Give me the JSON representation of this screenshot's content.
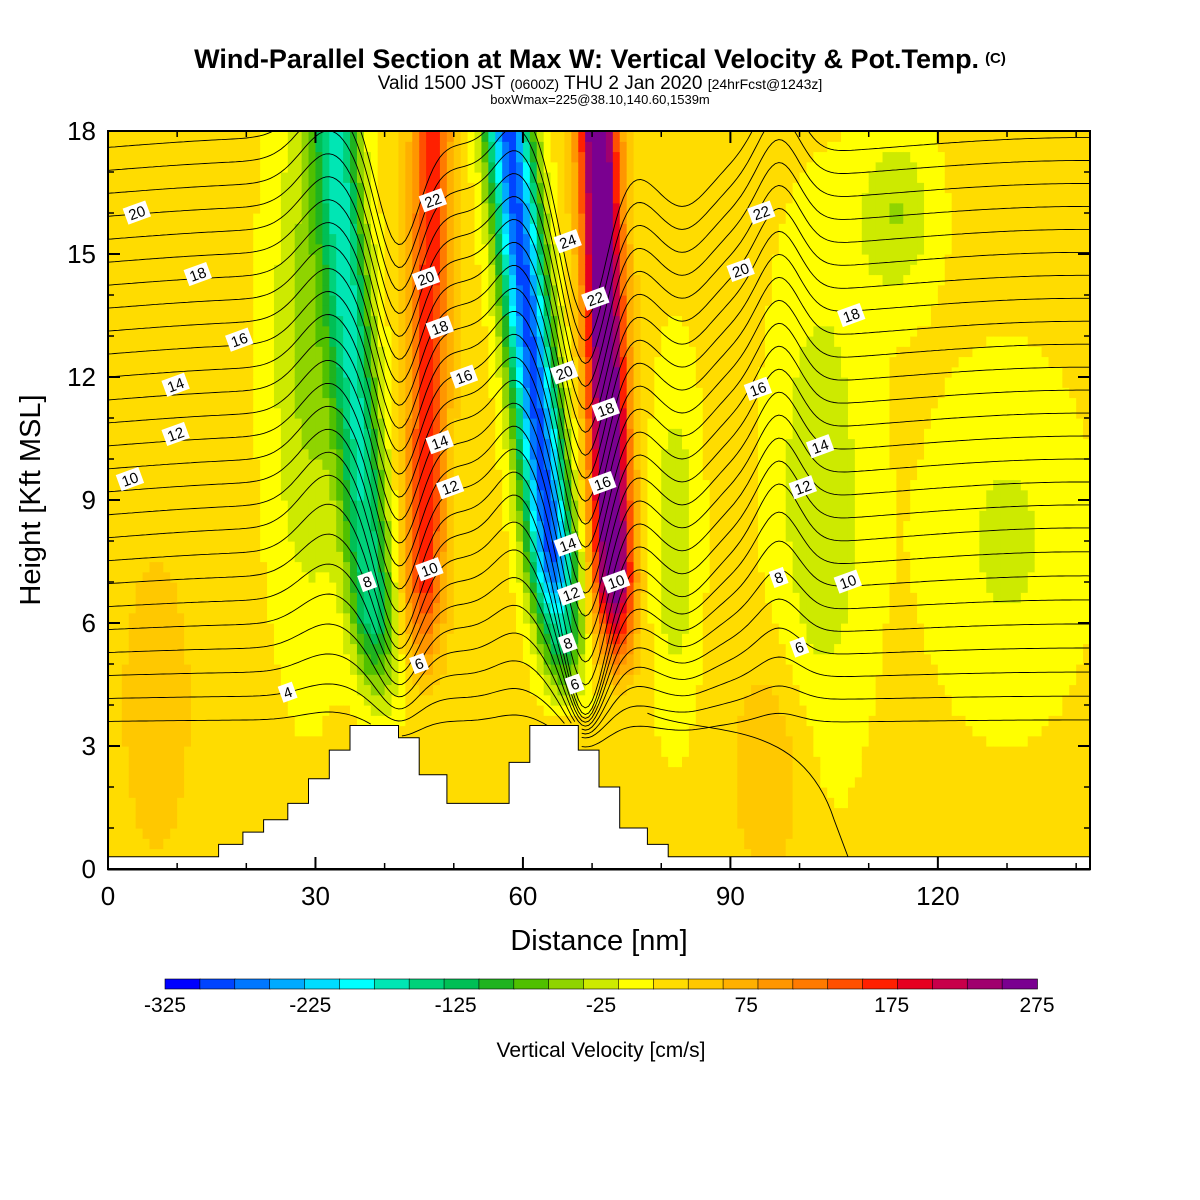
{
  "header": {
    "title": "Wind-Parallel Section at Max W: Vertical Velocity & Pot.Temp.",
    "copyright": "(C)",
    "valid_pre": "Valid 1500 JST",
    "valid_z": "(0600Z)",
    "valid_post": "THU 2 Jan 2020",
    "forecast": "[24hrFcst@1243z]",
    "boxinfo": "boxWmax=225@38.10,140.60,1539m"
  },
  "chart_data": {
    "type": "heatmap",
    "xlabel": "Distance [nm]",
    "ylabel": "Height [Kft MSL]",
    "xlim": [
      0,
      142
    ],
    "ylim": [
      0,
      18
    ],
    "x_ticks": [
      "0",
      "30",
      "60",
      "90",
      "120"
    ],
    "y_ticks": [
      "0",
      "3",
      "6",
      "9",
      "12",
      "15",
      "18"
    ],
    "colorbar": {
      "label": "Vertical Velocity [cm/s]",
      "tick_labels": [
        "-325",
        "-225",
        "-125",
        "-25",
        "75",
        "175",
        "275"
      ],
      "levels": [
        -325,
        -300,
        -275,
        -250,
        -225,
        -200,
        -175,
        -150,
        -125,
        -100,
        -75,
        -50,
        -25,
        0,
        25,
        50,
        75,
        100,
        125,
        150,
        175,
        200,
        225,
        250,
        275
      ],
      "colors": [
        "#0000ff",
        "#0044ff",
        "#0077ff",
        "#00aaff",
        "#00dcff",
        "#00ffff",
        "#00e6b4",
        "#00d27a",
        "#00bf55",
        "#1fb31f",
        "#50c000",
        "#8fd400",
        "#cdea00",
        "#ffff00",
        "#ffdc00",
        "#ffc800",
        "#ffb000",
        "#ff9600",
        "#ff7a00",
        "#ff5000",
        "#ff2000",
        "#e60020",
        "#c8004a",
        "#a0006e",
        "#7a0090"
      ]
    },
    "isentrope_labels": [
      "4",
      "6",
      "8",
      "10",
      "12",
      "14",
      "16",
      "18",
      "20",
      "22",
      "24"
    ],
    "isentrope_label_annotations": [
      {
        "text": "20",
        "x": 4.2,
        "y": 16.0
      },
      {
        "text": "18",
        "x": 13.0,
        "y": 14.5
      },
      {
        "text": "16",
        "x": 19.0,
        "y": 12.9
      },
      {
        "text": "14",
        "x": 9.8,
        "y": 11.8
      },
      {
        "text": "12",
        "x": 9.8,
        "y": 10.6
      },
      {
        "text": "10",
        "x": 3.2,
        "y": 9.5
      },
      {
        "text": "4",
        "x": 26.0,
        "y": 4.3
      },
      {
        "text": "8",
        "x": 37.5,
        "y": 7.0
      },
      {
        "text": "6",
        "x": 45.0,
        "y": 5.0
      },
      {
        "text": "10",
        "x": 46.5,
        "y": 7.3
      },
      {
        "text": "12",
        "x": 49.5,
        "y": 9.3
      },
      {
        "text": "14",
        "x": 48.0,
        "y": 10.4
      },
      {
        "text": "16",
        "x": 51.5,
        "y": 12.0
      },
      {
        "text": "18",
        "x": 48.0,
        "y": 13.2
      },
      {
        "text": "20",
        "x": 46.0,
        "y": 14.4
      },
      {
        "text": "22",
        "x": 47.0,
        "y": 16.3
      },
      {
        "text": "24",
        "x": 66.5,
        "y": 15.3
      },
      {
        "text": "22",
        "x": 70.5,
        "y": 13.9
      },
      {
        "text": "20",
        "x": 66.0,
        "y": 12.1
      },
      {
        "text": "18",
        "x": 72.0,
        "y": 11.2
      },
      {
        "text": "16",
        "x": 71.5,
        "y": 9.4
      },
      {
        "text": "14",
        "x": 66.5,
        "y": 7.9
      },
      {
        "text": "12",
        "x": 67.0,
        "y": 6.7
      },
      {
        "text": "10",
        "x": 73.5,
        "y": 7.0
      },
      {
        "text": "8",
        "x": 66.5,
        "y": 5.5
      },
      {
        "text": "6",
        "x": 67.5,
        "y": 4.5
      },
      {
        "text": "22",
        "x": 94.5,
        "y": 16.0
      },
      {
        "text": "20",
        "x": 91.5,
        "y": 14.6
      },
      {
        "text": "18",
        "x": 107.5,
        "y": 13.5
      },
      {
        "text": "16",
        "x": 94.0,
        "y": 11.7
      },
      {
        "text": "14",
        "x": 103.0,
        "y": 10.3
      },
      {
        "text": "12",
        "x": 100.5,
        "y": 9.3
      },
      {
        "text": "8",
        "x": 97.0,
        "y": 7.1
      },
      {
        "text": "10",
        "x": 107.0,
        "y": 7.0
      },
      {
        "text": "6",
        "x": 100.0,
        "y": 5.4
      }
    ],
    "terrain_profile": [
      [
        0,
        0.3
      ],
      [
        16,
        0.3
      ],
      [
        16,
        0.6
      ],
      [
        19.5,
        0.6
      ],
      [
        19.5,
        0.9
      ],
      [
        22.5,
        0.9
      ],
      [
        22.5,
        1.2
      ],
      [
        26,
        1.2
      ],
      [
        26,
        1.6
      ],
      [
        29,
        1.6
      ],
      [
        29,
        2.2
      ],
      [
        32,
        2.2
      ],
      [
        32,
        2.9
      ],
      [
        35,
        2.9
      ],
      [
        35,
        3.5
      ],
      [
        42,
        3.5
      ],
      [
        42,
        3.2
      ],
      [
        45,
        3.2
      ],
      [
        45,
        2.3
      ],
      [
        49,
        2.3
      ],
      [
        49,
        1.6
      ],
      [
        58,
        1.6
      ],
      [
        58,
        2.6
      ],
      [
        61,
        2.6
      ],
      [
        61,
        3.5
      ],
      [
        68,
        3.5
      ],
      [
        68,
        2.9
      ],
      [
        71,
        2.9
      ],
      [
        71,
        2.0
      ],
      [
        74,
        2.0
      ],
      [
        74,
        1.0
      ],
      [
        78,
        1.0
      ],
      [
        78,
        0.6
      ],
      [
        81,
        0.6
      ],
      [
        81,
        0.3
      ],
      [
        142,
        0.3
      ]
    ]
  }
}
